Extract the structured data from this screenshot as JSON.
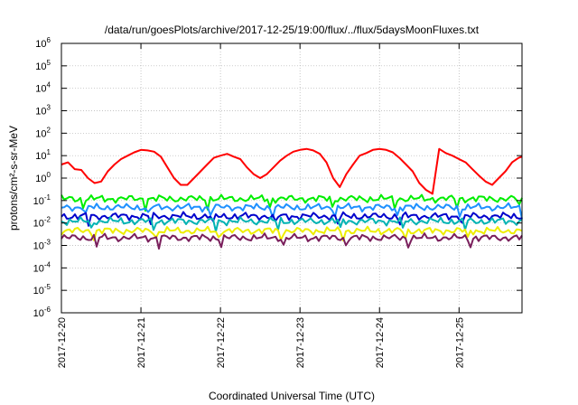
{
  "chart_data": {
    "type": "line",
    "title": "/data/run/goesPlots/archive/2017-12-25/19:00/flux/../flux/5daysMoonFluxes.txt",
    "xlabel": "Coordinated Universal Time (UTC)",
    "ylabel": "protons/cm²-s-sr-MeV",
    "y_scale": "log",
    "ylim": [
      1e-06,
      1000000.0
    ],
    "xlim": [
      "2017-12-20T00:00",
      "2017-12-25T19:00"
    ],
    "grid": true,
    "y_ticks": [
      {
        "base": "10",
        "exp": "-6",
        "value": 1e-06
      },
      {
        "base": "10",
        "exp": "-5",
        "value": 1e-05
      },
      {
        "base": "10",
        "exp": "-4",
        "value": 0.0001
      },
      {
        "base": "10",
        "exp": "-3",
        "value": 0.001
      },
      {
        "base": "10",
        "exp": "-2",
        "value": 0.01
      },
      {
        "base": "10",
        "exp": "-1",
        "value": 0.1
      },
      {
        "base": "10",
        "exp": "0",
        "value": 1
      },
      {
        "base": "10",
        "exp": "1",
        "value": 10
      },
      {
        "base": "10",
        "exp": "2",
        "value": 100
      },
      {
        "base": "10",
        "exp": "3",
        "value": 1000
      },
      {
        "base": "10",
        "exp": "4",
        "value": 10000
      },
      {
        "base": "10",
        "exp": "5",
        "value": 100000
      },
      {
        "base": "10",
        "exp": "6",
        "value": 1000000
      }
    ],
    "x_ticks": [
      "2017-12-20",
      "2017-12-21",
      "2017-12-22",
      "2017-12-23",
      "2017-12-24",
      "2017-12-25"
    ],
    "series": [
      {
        "color": "#ff0000",
        "x": [
          "2017-12-20T00:00",
          "2017-12-20T02:00",
          "2017-12-20T04:00",
          "2017-12-20T06:00",
          "2017-12-20T08:00",
          "2017-12-20T10:00",
          "2017-12-20T12:00",
          "2017-12-20T14:00",
          "2017-12-20T16:00",
          "2017-12-20T18:00",
          "2017-12-20T20:00",
          "2017-12-20T22:00",
          "2017-12-21T00:00",
          "2017-12-21T02:00",
          "2017-12-21T04:00",
          "2017-12-21T06:00",
          "2017-12-21T08:00",
          "2017-12-21T10:00",
          "2017-12-21T12:00",
          "2017-12-21T14:00",
          "2017-12-21T16:00",
          "2017-12-21T18:00",
          "2017-12-21T20:00",
          "2017-12-21T22:00",
          "2017-12-22T00:00",
          "2017-12-22T02:00",
          "2017-12-22T04:00",
          "2017-12-22T06:00",
          "2017-12-22T08:00",
          "2017-12-22T10:00",
          "2017-12-22T12:00",
          "2017-12-22T14:00",
          "2017-12-22T16:00",
          "2017-12-22T18:00",
          "2017-12-22T20:00",
          "2017-12-22T22:00",
          "2017-12-23T00:00",
          "2017-12-23T02:00",
          "2017-12-23T04:00",
          "2017-12-23T06:00",
          "2017-12-23T08:00",
          "2017-12-23T10:00",
          "2017-12-23T12:00",
          "2017-12-23T14:00",
          "2017-12-23T16:00",
          "2017-12-23T18:00",
          "2017-12-23T20:00",
          "2017-12-23T22:00",
          "2017-12-24T00:00",
          "2017-12-24T02:00",
          "2017-12-24T04:00",
          "2017-12-24T06:00",
          "2017-12-24T08:00",
          "2017-12-24T10:00",
          "2017-12-24T12:00",
          "2017-12-24T14:00",
          "2017-12-24T16:00",
          "2017-12-24T18:00",
          "2017-12-24T20:00",
          "2017-12-24T22:00",
          "2017-12-25T00:00",
          "2017-12-25T02:00",
          "2017-12-25T04:00",
          "2017-12-25T06:00",
          "2017-12-25T08:00",
          "2017-12-25T10:00",
          "2017-12-25T12:00",
          "2017-12-25T14:00",
          "2017-12-25T16:00",
          "2017-12-25T18:00",
          "2017-12-25T19:00"
        ],
        "y": [
          4,
          5,
          2.5,
          2.3,
          1,
          0.6,
          0.7,
          2,
          4,
          7,
          10,
          14,
          18,
          17,
          15,
          9,
          3,
          1,
          0.5,
          0.5,
          1,
          2,
          4,
          8,
          10,
          12,
          9,
          7,
          3,
          1.5,
          1,
          1.5,
          3,
          6,
          10,
          15,
          18,
          20,
          17,
          12,
          5,
          1,
          0.4,
          1.5,
          4,
          10,
          13,
          18,
          20,
          18,
          14,
          8,
          4,
          2,
          0.6,
          0.3,
          0.2,
          20,
          13,
          10,
          7,
          5,
          2.5,
          1.3,
          0.7,
          0.5,
          1,
          2,
          5,
          8,
          9
        ]
      },
      {
        "color": "#00ee00",
        "x": [
          "2017-12-20T00:00",
          "2017-12-25T19:00"
        ],
        "y": [
          0.12,
          0.12
        ]
      },
      {
        "color": "#1e90ff",
        "x": [
          "2017-12-20T00:00",
          "2017-12-25T19:00"
        ],
        "y": [
          0.05,
          0.05
        ]
      },
      {
        "color": "#0000cc",
        "x": [
          "2017-12-20T00:00",
          "2017-12-25T19:00"
        ],
        "y": [
          0.02,
          0.02
        ]
      },
      {
        "color": "#00b3b3",
        "x": [
          "2017-12-20T00:00",
          "2017-12-25T19:00"
        ],
        "y": [
          0.012,
          0.012
        ]
      },
      {
        "color": "#eeee00",
        "x": [
          "2017-12-20T00:00",
          "2017-12-25T19:00"
        ],
        "y": [
          0.0045,
          0.0045
        ]
      },
      {
        "color": "#7a1f5c",
        "x": [
          "2017-12-20T00:00",
          "2017-12-25T19:00"
        ],
        "y": [
          0.0022,
          0.0022
        ]
      }
    ]
  }
}
